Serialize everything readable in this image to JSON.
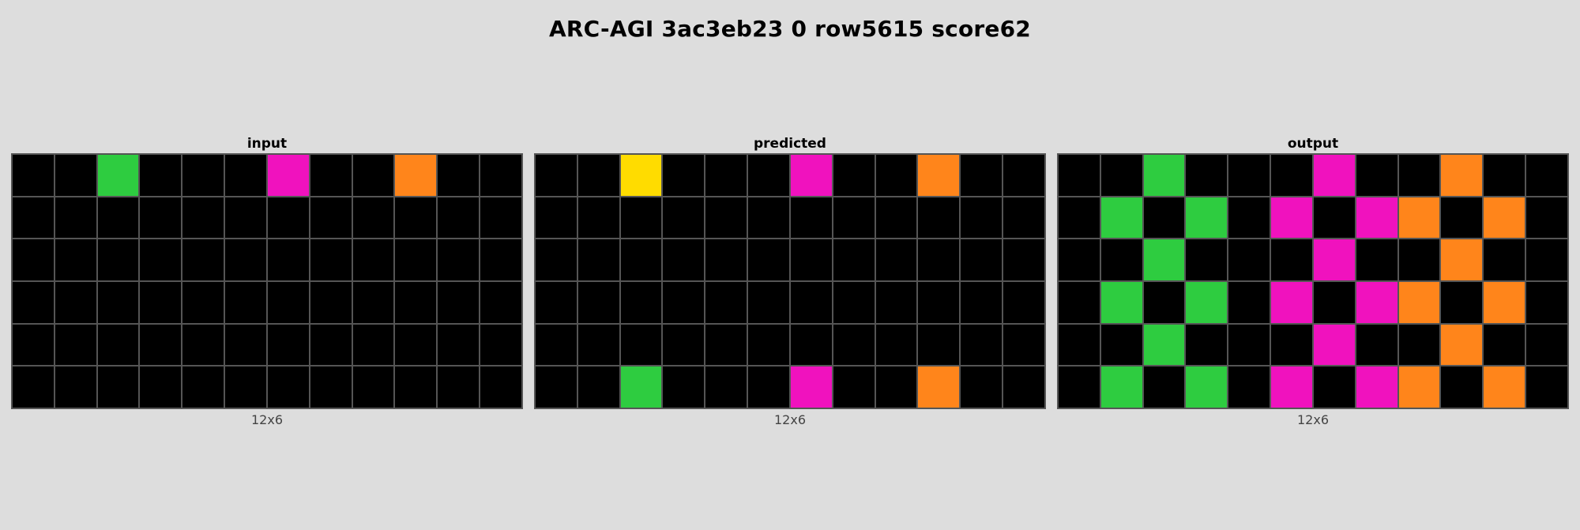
{
  "title": "ARC-AGI 3ac3eb23 0 row5615 score62",
  "palette": {
    "0": "#000000",
    "3": "#2ecc40",
    "4": "#ffdc00",
    "6": "#f012be",
    "7": "#ff851b"
  },
  "panels": [
    {
      "label": "input",
      "size_label": "12x6",
      "grid": [
        [
          0,
          0,
          3,
          0,
          0,
          0,
          6,
          0,
          0,
          7,
          0,
          0
        ],
        [
          0,
          0,
          0,
          0,
          0,
          0,
          0,
          0,
          0,
          0,
          0,
          0
        ],
        [
          0,
          0,
          0,
          0,
          0,
          0,
          0,
          0,
          0,
          0,
          0,
          0
        ],
        [
          0,
          0,
          0,
          0,
          0,
          0,
          0,
          0,
          0,
          0,
          0,
          0
        ],
        [
          0,
          0,
          0,
          0,
          0,
          0,
          0,
          0,
          0,
          0,
          0,
          0
        ],
        [
          0,
          0,
          0,
          0,
          0,
          0,
          0,
          0,
          0,
          0,
          0,
          0
        ]
      ]
    },
    {
      "label": "predicted",
      "size_label": "12x6",
      "grid": [
        [
          0,
          0,
          4,
          0,
          0,
          0,
          6,
          0,
          0,
          7,
          0,
          0
        ],
        [
          0,
          0,
          0,
          0,
          0,
          0,
          0,
          0,
          0,
          0,
          0,
          0
        ],
        [
          0,
          0,
          0,
          0,
          0,
          0,
          0,
          0,
          0,
          0,
          0,
          0
        ],
        [
          0,
          0,
          0,
          0,
          0,
          0,
          0,
          0,
          0,
          0,
          0,
          0
        ],
        [
          0,
          0,
          0,
          0,
          0,
          0,
          0,
          0,
          0,
          0,
          0,
          0
        ],
        [
          0,
          0,
          3,
          0,
          0,
          0,
          6,
          0,
          0,
          7,
          0,
          0
        ]
      ]
    },
    {
      "label": "output",
      "size_label": "12x6",
      "grid": [
        [
          0,
          0,
          3,
          0,
          0,
          0,
          6,
          0,
          0,
          7,
          0,
          0
        ],
        [
          0,
          3,
          0,
          3,
          0,
          6,
          0,
          6,
          7,
          0,
          7,
          0
        ],
        [
          0,
          0,
          3,
          0,
          0,
          0,
          6,
          0,
          0,
          7,
          0,
          0
        ],
        [
          0,
          3,
          0,
          3,
          0,
          6,
          0,
          6,
          7,
          0,
          7,
          0
        ],
        [
          0,
          0,
          3,
          0,
          0,
          0,
          6,
          0,
          0,
          7,
          0,
          0
        ],
        [
          0,
          3,
          0,
          3,
          0,
          6,
          0,
          6,
          7,
          0,
          7,
          0
        ]
      ]
    }
  ]
}
